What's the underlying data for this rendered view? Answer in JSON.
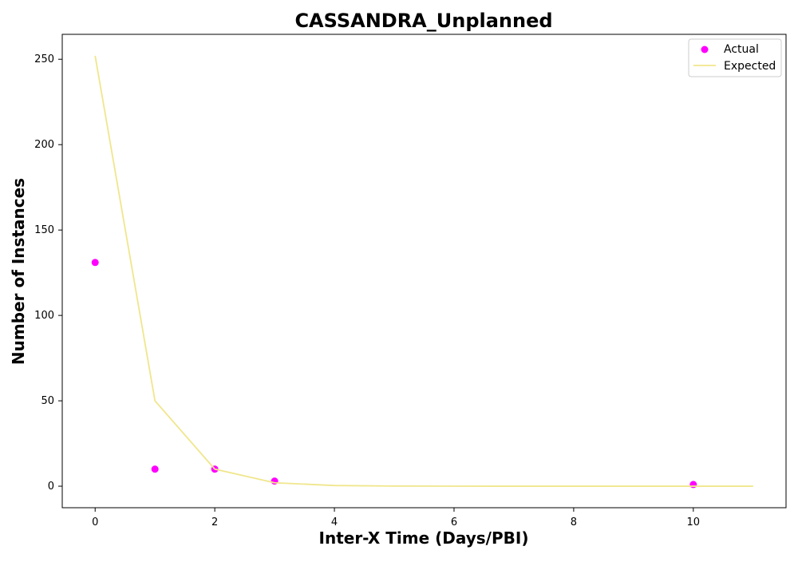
{
  "chart_data": {
    "type": "scatter",
    "title": "CASSANDRA_Unplanned",
    "xlabel": "Inter-X Time (Days/PBI)",
    "ylabel": "Number of Instances",
    "xlim": [
      -0.55,
      11.55
    ],
    "ylim": [
      -12.6,
      264.6
    ],
    "xticks": [
      0,
      2,
      4,
      6,
      8,
      10
    ],
    "yticks": [
      0,
      50,
      100,
      150,
      200,
      250
    ],
    "grid": false,
    "legend_position": "top-right",
    "series": [
      {
        "name": "Actual",
        "kind": "scatter",
        "color": "#ff00ff",
        "points": [
          {
            "x": 0,
            "y": 131
          },
          {
            "x": 1,
            "y": 10
          },
          {
            "x": 2,
            "y": 10
          },
          {
            "x": 3,
            "y": 3
          },
          {
            "x": 10,
            "y": 1
          }
        ]
      },
      {
        "name": "Expected",
        "kind": "line",
        "color": "#f0e68c",
        "points": [
          {
            "x": 0,
            "y": 252
          },
          {
            "x": 1,
            "y": 50
          },
          {
            "x": 2,
            "y": 10
          },
          {
            "x": 3,
            "y": 2
          },
          {
            "x": 4,
            "y": 0.4
          },
          {
            "x": 5,
            "y": 0.08
          },
          {
            "x": 6,
            "y": 0.02
          },
          {
            "x": 7,
            "y": 0
          },
          {
            "x": 8,
            "y": 0
          },
          {
            "x": 9,
            "y": 0
          },
          {
            "x": 10,
            "y": 0
          },
          {
            "x": 11,
            "y": 0
          }
        ]
      }
    ]
  }
}
